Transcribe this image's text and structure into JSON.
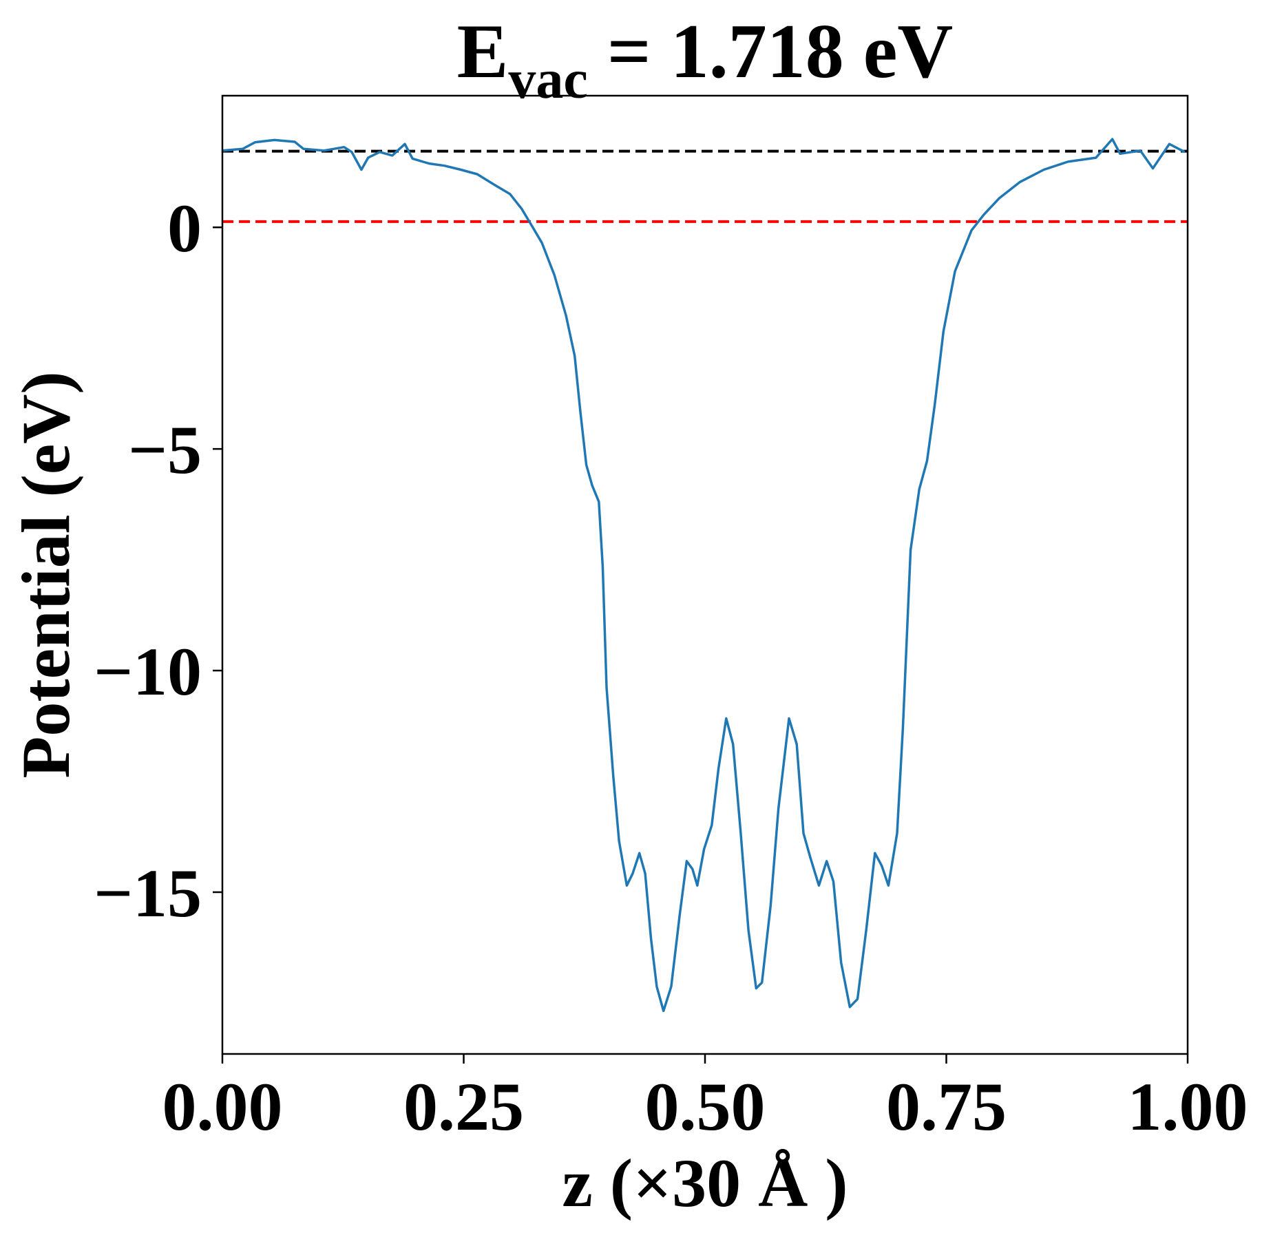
{
  "chart_data": {
    "type": "line",
    "title": {
      "main": "E",
      "sub": "vac",
      "rest": " = 1.718 eV"
    },
    "xlabel": "z (×30 Å )",
    "ylabel": "Potential (eV)",
    "xlim": [
      0,
      1
    ],
    "ylim": [
      -18.65,
      2.97
    ],
    "xticks": [
      {
        "value": 0,
        "label": "0.00"
      },
      {
        "value": 0.25,
        "label": "0.25"
      },
      {
        "value": 0.5,
        "label": "0.50"
      },
      {
        "value": 0.75,
        "label": "0.75"
      },
      {
        "value": 1,
        "label": "1.00"
      }
    ],
    "yticks": [
      0,
      {
        "value": -5,
        "label": "−5"
      },
      {
        "value": -10,
        "label": "−10"
      },
      {
        "value": -15,
        "label": "−15"
      }
    ],
    "hlines": [
      {
        "value": 1.718,
        "color": "#000000"
      },
      {
        "value": 0.13,
        "color": "#ff0000"
      }
    ],
    "series": [
      {
        "color": "#1f77b4",
        "x": [
          0,
          0.021,
          0.034,
          0.054,
          0.075,
          0.084,
          0.105,
          0.126,
          0.134,
          0.144,
          0.151,
          0.163,
          0.176,
          0.189,
          0.197,
          0.214,
          0.23,
          0.247,
          0.264,
          0.281,
          0.298,
          0.31,
          0.321,
          0.331,
          0.344,
          0.356,
          0.365,
          0.371,
          0.377,
          0.383,
          0.39,
          0.394,
          0.398,
          0.405,
          0.411,
          0.419,
          0.425,
          0.432,
          0.438,
          0.444,
          0.45,
          0.457,
          0.465,
          0.474,
          0.481,
          0.487,
          0.492,
          0.499,
          0.507,
          0.514,
          0.522,
          0.529,
          0.537,
          0.545,
          0.553,
          0.559,
          0.568,
          0.576,
          0.587,
          0.595,
          0.602,
          0.609,
          0.618,
          0.626,
          0.633,
          0.641,
          0.65,
          0.658,
          0.667,
          0.676,
          0.683,
          0.69,
          0.699,
          0.705,
          0.713,
          0.722,
          0.73,
          0.738,
          0.747,
          0.759,
          0.776,
          0.789,
          0.805,
          0.826,
          0.851,
          0.876,
          0.905,
          0.922,
          0.93,
          0.951,
          0.964,
          0.981,
          0.997
        ],
        "values": [
          1.73,
          1.77,
          1.92,
          1.97,
          1.93,
          1.77,
          1.73,
          1.81,
          1.7,
          1.3,
          1.57,
          1.7,
          1.62,
          1.88,
          1.55,
          1.44,
          1.39,
          1.3,
          1.2,
          0.97,
          0.75,
          0.42,
          0.02,
          -0.35,
          -1.08,
          -1.99,
          -2.9,
          -4.18,
          -5.36,
          -5.82,
          -6.19,
          -7.65,
          -10.38,
          -12.39,
          -13.85,
          -14.85,
          -14.58,
          -14.12,
          -14.58,
          -16.04,
          -17.13,
          -17.68,
          -17.13,
          -15.48,
          -14.3,
          -14.48,
          -14.85,
          -14.03,
          -13.49,
          -12.21,
          -11.08,
          -11.66,
          -13.67,
          -15.86,
          -17.17,
          -17.04,
          -15.3,
          -13.12,
          -11.08,
          -11.66,
          -13.67,
          -14.21,
          -14.85,
          -14.3,
          -14.76,
          -16.59,
          -17.59,
          -17.41,
          -15.86,
          -14.12,
          -14.4,
          -14.85,
          -13.67,
          -11.3,
          -7.28,
          -5.91,
          -5.27,
          -4.0,
          -2.35,
          -0.99,
          -0.07,
          0.29,
          0.66,
          1.02,
          1.3,
          1.48,
          1.57,
          1.99,
          1.66,
          1.73,
          1.33,
          1.88,
          1.7
        ]
      }
    ]
  }
}
